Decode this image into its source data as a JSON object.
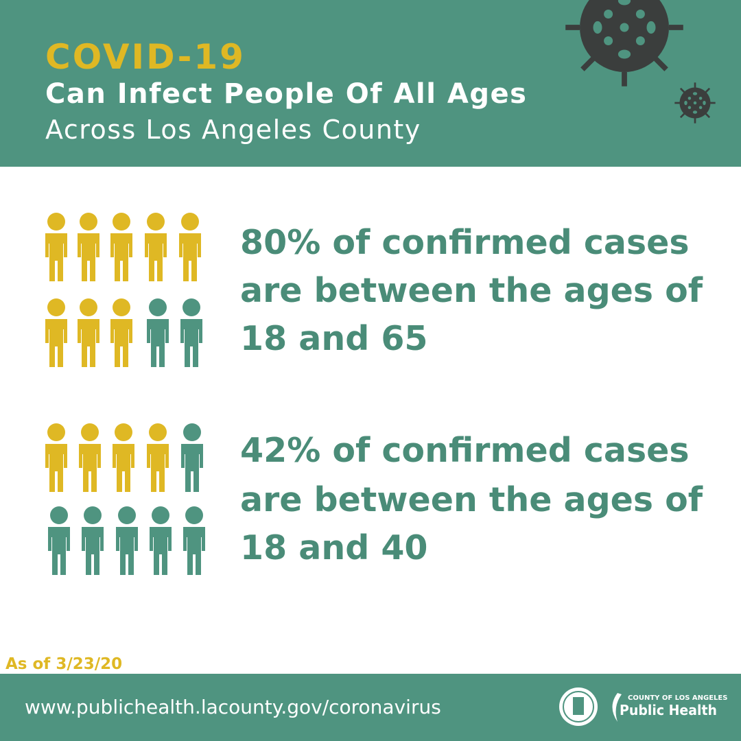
{
  "header": {
    "title": "COVID-19",
    "line1": "Can Infect People Of All Ages",
    "line2": "Across Los Angeles County"
  },
  "stats": [
    {
      "lines": [
        "80% of confirmed cases",
        "are between the ages of",
        "18 and 65"
      ]
    },
    {
      "lines": [
        "42% of confirmed cases",
        "are between the ages of",
        "18 and 40"
      ]
    }
  ],
  "note": "As of 3/23/20",
  "footer": {
    "url": "www.publichealth.lacounty.gov/coronavirus",
    "logo_top": "County of Los Angeles",
    "logo_main": "Public Health"
  }
}
